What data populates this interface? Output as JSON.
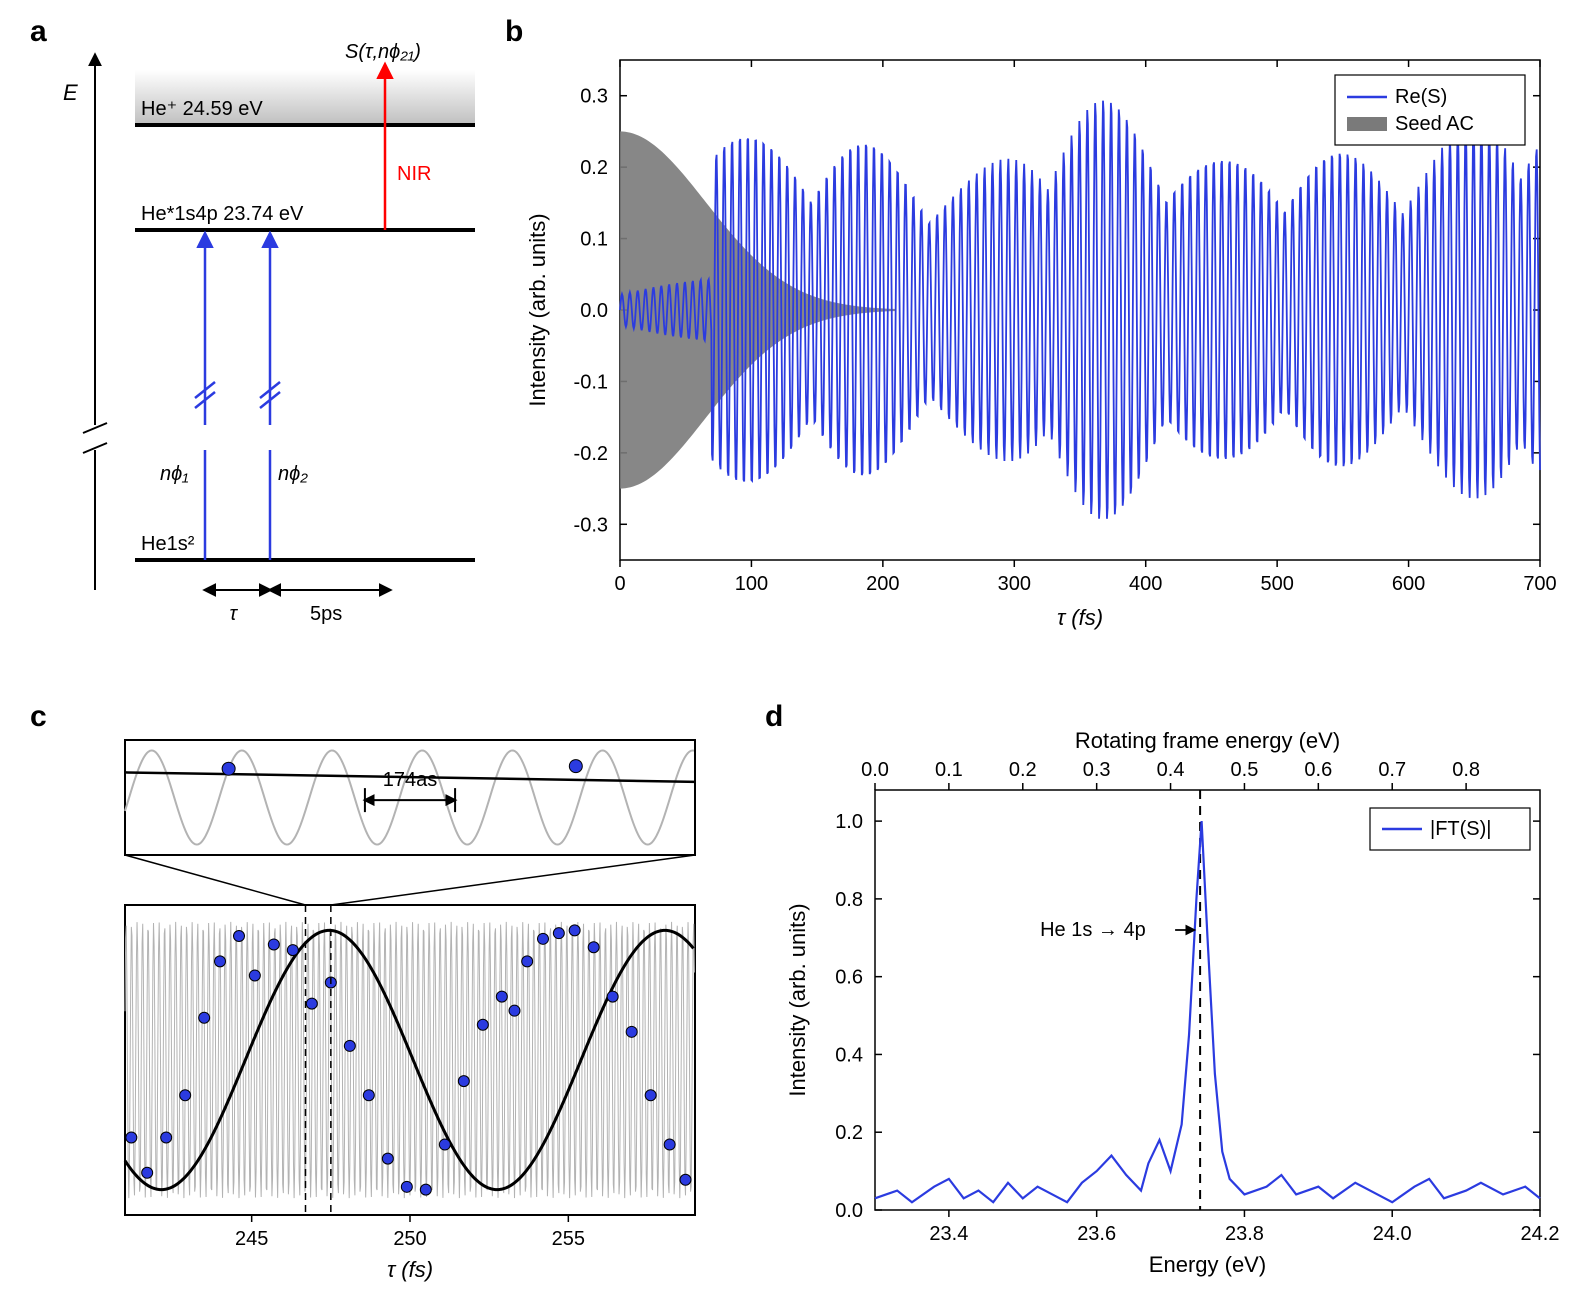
{
  "labels": {
    "a": "a",
    "b": "b",
    "c": "c",
    "d": "d"
  },
  "colors": {
    "blue": "#2b3be0",
    "gray_fill": "#7a7a7a",
    "gray_line": "#b3b3b3",
    "black": "#000000",
    "red": "#ff0000",
    "tick": "#000000",
    "axis": "#000000",
    "bg": "#ffffff"
  },
  "panel_a": {
    "E_label": "E",
    "title_top": "S(τ,nϕ₂₁)",
    "nir_label": "NIR",
    "level_top": "He⁺ 24.59 eV",
    "level_mid": "He*1s4p 23.74 eV",
    "level_bot": "He1s²",
    "nphi1": "nϕ₁",
    "nphi2": "nϕ₂",
    "tau": "τ",
    "five_ps": "5ps",
    "arrow_width": 2,
    "fontsize": 22,
    "fontsize_small": 20
  },
  "panel_b": {
    "xlabel": "τ (fs)",
    "ylabel": "Intensity (arb. units)",
    "xlim": [
      0,
      700
    ],
    "ylim": [
      -0.35,
      0.35
    ],
    "xticks": [
      0,
      100,
      200,
      300,
      400,
      500,
      600,
      700
    ],
    "yticks": [
      -0.3,
      -0.2,
      -0.1,
      0.0,
      0.1,
      0.2,
      0.3
    ],
    "legend": [
      "Re(S)",
      "Seed AC"
    ],
    "seed_ac_sigma_fs": 65,
    "seed_ac_amp": 0.25,
    "seed_ac_extent": 210,
    "signal_color": "#2b3be0",
    "seed_color": "#7a7a7a",
    "linewidth": 1.8,
    "fontsize": 22,
    "tick_fontsize": 20,
    "legend_fontsize": 20
  },
  "panel_c": {
    "xlabel": "τ (fs)",
    "xlim": [
      241,
      259
    ],
    "xticks": [
      245,
      250,
      255
    ],
    "zoom_label": "174as",
    "fast_period_fs": 0.174,
    "slow_period_fs": 10.6,
    "point_radius": 5.5,
    "point_color": "#2b3be0",
    "slow_color": "#000000",
    "fast_color": "#b3b3b3",
    "linewidth_slow": 3,
    "linewidth_fast": 1,
    "points": [
      [
        241.2,
        -0.55
      ],
      [
        241.7,
        -0.8
      ],
      [
        242.3,
        -0.55
      ],
      [
        242.9,
        -0.25
      ],
      [
        243.5,
        0.3
      ],
      [
        244.0,
        0.7
      ],
      [
        244.6,
        0.88
      ],
      [
        245.1,
        0.6
      ],
      [
        245.7,
        0.82
      ],
      [
        246.3,
        0.78
      ],
      [
        246.9,
        0.4
      ],
      [
        247.5,
        0.55
      ],
      [
        248.1,
        0.1
      ],
      [
        248.7,
        -0.25
      ],
      [
        249.3,
        -0.7
      ],
      [
        249.9,
        -0.9
      ],
      [
        250.5,
        -0.92
      ],
      [
        251.1,
        -0.6
      ],
      [
        251.7,
        -0.15
      ],
      [
        252.3,
        0.25
      ],
      [
        252.9,
        0.45
      ],
      [
        253.3,
        0.35
      ],
      [
        253.7,
        0.7
      ],
      [
        254.2,
        0.86
      ],
      [
        254.7,
        0.9
      ],
      [
        255.2,
        0.92
      ],
      [
        255.8,
        0.8
      ],
      [
        256.4,
        0.45
      ],
      [
        257.0,
        0.2
      ],
      [
        257.6,
        -0.25
      ],
      [
        258.2,
        -0.6
      ],
      [
        258.7,
        -0.85
      ]
    ],
    "zoom_xlim": [
      246.55,
      247.65
    ],
    "zoom_points": [
      [
        246.75,
        0.55
      ],
      [
        247.42,
        0.6
      ]
    ],
    "dashed_x": [
      246.7,
      247.5
    ],
    "fontsize": 22
  },
  "panel_d": {
    "xlabel": "Energy (eV)",
    "ylabel": "Intensity (arb. units)",
    "xlabel_top": "Rotating frame energy (eV)",
    "xlim": [
      23.3,
      24.2
    ],
    "ylim": [
      0,
      1.08
    ],
    "xticks": [
      23.4,
      23.6,
      23.8,
      24.0,
      24.2
    ],
    "yticks": [
      0.0,
      0.2,
      0.4,
      0.6,
      0.8,
      1.0
    ],
    "xticks_top": [
      0.0,
      0.1,
      0.2,
      0.3,
      0.4,
      0.5,
      0.6,
      0.7,
      0.8
    ],
    "top_offset": 23.3,
    "peak_x": 23.74,
    "peak_label": "He 1s → 4p",
    "legend": "|FT(S)|",
    "line_color": "#2b3be0",
    "linewidth": 2.2,
    "fontsize": 22,
    "tick_fontsize": 20,
    "data": [
      [
        23.3,
        0.03
      ],
      [
        23.33,
        0.05
      ],
      [
        23.35,
        0.02
      ],
      [
        23.38,
        0.06
      ],
      [
        23.4,
        0.08
      ],
      [
        23.42,
        0.03
      ],
      [
        23.44,
        0.05
      ],
      [
        23.46,
        0.02
      ],
      [
        23.48,
        0.07
      ],
      [
        23.5,
        0.03
      ],
      [
        23.52,
        0.06
      ],
      [
        23.54,
        0.04
      ],
      [
        23.56,
        0.02
      ],
      [
        23.58,
        0.07
      ],
      [
        23.6,
        0.1
      ],
      [
        23.62,
        0.14
      ],
      [
        23.64,
        0.09
      ],
      [
        23.66,
        0.05
      ],
      [
        23.67,
        0.12
      ],
      [
        23.685,
        0.18
      ],
      [
        23.7,
        0.1
      ],
      [
        23.715,
        0.22
      ],
      [
        23.725,
        0.45
      ],
      [
        23.735,
        0.8
      ],
      [
        23.742,
        1.0
      ],
      [
        23.75,
        0.7
      ],
      [
        23.76,
        0.35
      ],
      [
        23.77,
        0.15
      ],
      [
        23.78,
        0.08
      ],
      [
        23.8,
        0.04
      ],
      [
        23.83,
        0.06
      ],
      [
        23.85,
        0.09
      ],
      [
        23.87,
        0.04
      ],
      [
        23.9,
        0.06
      ],
      [
        23.92,
        0.03
      ],
      [
        23.95,
        0.07
      ],
      [
        23.98,
        0.04
      ],
      [
        24.0,
        0.02
      ],
      [
        24.03,
        0.06
      ],
      [
        24.05,
        0.08
      ],
      [
        24.07,
        0.03
      ],
      [
        24.1,
        0.05
      ],
      [
        24.12,
        0.07
      ],
      [
        24.15,
        0.04
      ],
      [
        24.18,
        0.06
      ],
      [
        24.2,
        0.03
      ]
    ]
  }
}
